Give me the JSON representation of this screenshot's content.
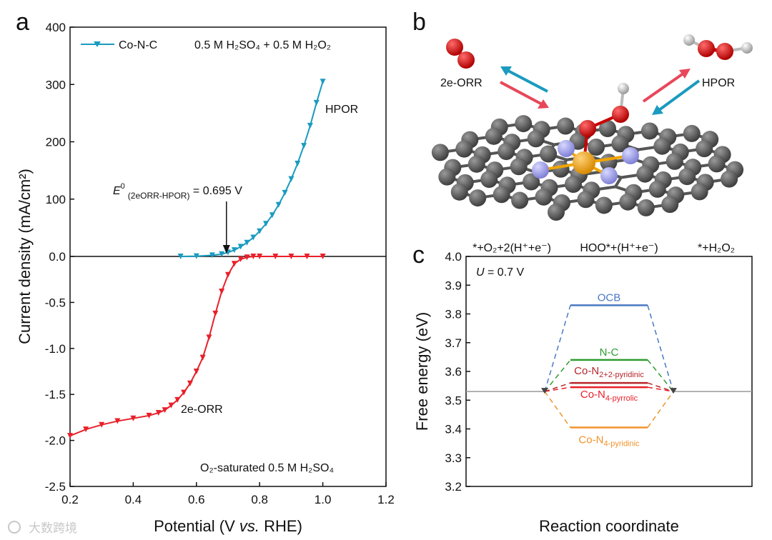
{
  "panels": {
    "a": "a",
    "b": "b",
    "c": "c"
  },
  "watermark": "大数跨境",
  "chart_data": [
    {
      "type": "line",
      "panel": "a",
      "xlabel_parts": {
        "pre": "Potential (V ",
        "italic": "vs.",
        "post": " RHE)"
      },
      "ylabel": "Current density (mA/cm²)",
      "xlim": [
        0.2,
        1.2
      ],
      "x_ticks": [
        "0.2",
        "0.4",
        "0.6",
        "0.8",
        "1.0",
        "1.2"
      ],
      "y_upper": {
        "ylim": [
          0,
          400
        ],
        "ticks": [
          "0.0",
          "100",
          "200",
          "300",
          "400"
        ]
      },
      "y_lower": {
        "ylim": [
          -2.5,
          0
        ],
        "ticks": [
          "-2.5",
          "-2.0",
          "-1.5",
          "-1.0",
          "-0.5"
        ]
      },
      "legend_label": "Co-N-C",
      "condition_top": "0.5 M H₂SO₄ + 0.5 M H₂O₂",
      "condition_bottom": "O₂-saturated 0.5 M H₂SO₄",
      "annotation_hpor": "HPOR",
      "annotation_orr": "2e-ORR",
      "annotation_e0": {
        "pre": "E",
        "sup": "0",
        "sub": "(2eORR-HPOR)",
        "post": " = 0.695 V",
        "x": 0.695
      },
      "series": [
        {
          "name": "HPOR (upper)",
          "color": "#1a9bbf",
          "x": [
            0.55,
            0.6,
            0.65,
            0.68,
            0.7,
            0.72,
            0.74,
            0.76,
            0.78,
            0.8,
            0.82,
            0.84,
            0.86,
            0.88,
            0.9,
            0.92,
            0.94,
            0.96,
            0.98,
            1.0
          ],
          "y": [
            0,
            0.5,
            2,
            4,
            7,
            11,
            17,
            24,
            33,
            44,
            57,
            72,
            90,
            111,
            135,
            162,
            193,
            228,
            268,
            305
          ]
        },
        {
          "name": "2e-ORR (lower)",
          "color": "#e8202a",
          "x": [
            0.2,
            0.25,
            0.3,
            0.35,
            0.4,
            0.45,
            0.48,
            0.5,
            0.52,
            0.54,
            0.56,
            0.58,
            0.6,
            0.62,
            0.64,
            0.66,
            0.68,
            0.7,
            0.72,
            0.74,
            0.76,
            0.78,
            0.8,
            0.85,
            0.9,
            0.95,
            1.0
          ],
          "y": [
            -1.95,
            -1.88,
            -1.83,
            -1.79,
            -1.76,
            -1.73,
            -1.7,
            -1.67,
            -1.62,
            -1.56,
            -1.48,
            -1.38,
            -1.25,
            -1.1,
            -0.88,
            -0.62,
            -0.38,
            -0.2,
            -0.08,
            -0.03,
            -0.01,
            0,
            0,
            0,
            0,
            0,
            0
          ]
        }
      ]
    },
    {
      "type": "line",
      "panel": "c",
      "ylabel": "Free energy (eV)",
      "xlabel": "Reaction coordinate",
      "ylim": [
        3.2,
        4.0
      ],
      "y_ticks": [
        "3.2",
        "3.3",
        "3.4",
        "3.5",
        "3.6",
        "3.7",
        "3.8",
        "3.9",
        "4.0"
      ],
      "top_labels": [
        "*+O₂+2(H⁺+e⁻)",
        "HOO*+(H⁺+e⁻)",
        "*+H₂O₂"
      ],
      "potential_label": {
        "pre": "U",
        "post": " = 0.7 V"
      },
      "baseline": 3.53,
      "series": [
        {
          "name": "OCB",
          "label_main": "OCB",
          "label_sub": "",
          "value": 3.83,
          "color": "#4a78c4"
        },
        {
          "name": "N-C",
          "label_main": "N-C",
          "label_sub": "",
          "value": 3.64,
          "color": "#2e9c2e"
        },
        {
          "name": "Co-N2+2-pyridinic",
          "label_main": "Co-N",
          "label_sub": "2+2-pyridinic",
          "value": 3.56,
          "color": "#b5262a"
        },
        {
          "name": "Co-N4-pyrrolic",
          "label_main": "Co-N",
          "label_sub": "4-pyrrolic",
          "value": 3.545,
          "color": "#e8202a"
        },
        {
          "name": "Co-N4-pyridinic",
          "label_main": "Co-N",
          "label_sub": "4-pyridinic",
          "value": 3.405,
          "color": "#f0932b"
        }
      ]
    }
  ],
  "panel_b": {
    "label_left": "2e-ORR",
    "label_right": "HPOR"
  }
}
